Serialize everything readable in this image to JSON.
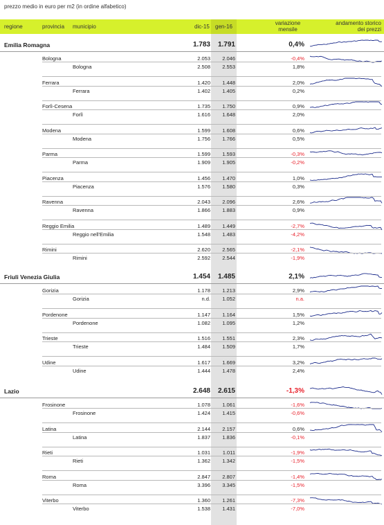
{
  "caption": "prezzo medio in euro per m2 (in ordine alfabetico)",
  "colors": {
    "header": "#d6f02c",
    "negative": "#e8202a",
    "spark": "#1a2a8a",
    "grayColumn": "#e2e2e2"
  },
  "header": {
    "regione": "regione",
    "provincia": "provincia",
    "municipio": "municipio",
    "dic": "dic-15",
    "gen": "gen-16",
    "variazione_1": "variazione",
    "variazione_2": "mensile",
    "andamento_1": "andamento storico",
    "andamento_2": "dei prezzi"
  },
  "regions": [
    {
      "name": "Emilia Romagna",
      "dic": "1.783",
      "gen": "1.791",
      "var": "0,4%",
      "neg": false,
      "provinces": [
        {
          "name": "Bologna",
          "dic": "2.053",
          "gen": "2.046",
          "var": "-0,4%",
          "neg": true,
          "city": {
            "name": "Bologna",
            "dic": "2.508",
            "gen": "2.553",
            "var": "1,8%",
            "neg": false
          }
        },
        {
          "name": "Ferrara",
          "dic": "1.420",
          "gen": "1.448",
          "var": "2,0%",
          "neg": false,
          "city": {
            "name": "Ferrara",
            "dic": "1.402",
            "gen": "1.405",
            "var": "0,2%",
            "neg": false
          }
        },
        {
          "name": "Forlì-Cesena",
          "dic": "1.735",
          "gen": "1.750",
          "var": "0,9%",
          "neg": false,
          "city": {
            "name": "Forlì",
            "dic": "1.616",
            "gen": "1.648",
            "var": "2,0%",
            "neg": false
          }
        },
        {
          "name": "Modena",
          "dic": "1.599",
          "gen": "1.608",
          "var": "0,6%",
          "neg": false,
          "city": {
            "name": "Modena",
            "dic": "1.756",
            "gen": "1.766",
            "var": "0,5%",
            "neg": false
          }
        },
        {
          "name": "Parma",
          "dic": "1.599",
          "gen": "1.593",
          "var": "-0,3%",
          "neg": true,
          "city": {
            "name": "Parma",
            "dic": "1.909",
            "gen": "1.905",
            "var": "-0,2%",
            "neg": true
          }
        },
        {
          "name": "Piacenza",
          "dic": "1.456",
          "gen": "1.470",
          "var": "1,0%",
          "neg": false,
          "city": {
            "name": "Piacenza",
            "dic": "1.576",
            "gen": "1.580",
            "var": "0,3%",
            "neg": false
          }
        },
        {
          "name": "Ravenna",
          "dic": "2.043",
          "gen": "2.096",
          "var": "2,6%",
          "neg": false,
          "city": {
            "name": "Ravenna",
            "dic": "1.866",
            "gen": "1.883",
            "var": "0,9%",
            "neg": false
          }
        },
        {
          "name": "Reggio Emilia",
          "dic": "1.489",
          "gen": "1.449",
          "var": "-2,7%",
          "neg": true,
          "city": {
            "name": "Reggio nell'Emilia",
            "dic": "1.548",
            "gen": "1.483",
            "var": "-4,2%",
            "neg": true
          }
        },
        {
          "name": "Rimini",
          "dic": "2.620",
          "gen": "2.565",
          "var": "-2,1%",
          "neg": true,
          "city": {
            "name": "Rimini",
            "dic": "2.592",
            "gen": "2.544",
            "var": "-1,9%",
            "neg": true
          }
        }
      ]
    },
    {
      "name": "Friuli Venezia Giulia",
      "dic": "1.454",
      "gen": "1.485",
      "var": "2,1%",
      "neg": false,
      "provinces": [
        {
          "name": "Gorizia",
          "dic": "1.178",
          "gen": "1.213",
          "var": "2,9%",
          "neg": false,
          "city": {
            "name": "Gorizia",
            "dic": "n.d.",
            "gen": "1.052",
            "var": "n.a.",
            "neg": true
          }
        },
        {
          "name": "Pordenone",
          "dic": "1.147",
          "gen": "1.164",
          "var": "1,5%",
          "neg": false,
          "city": {
            "name": "Pordenone",
            "dic": "1.082",
            "gen": "1.095",
            "var": "1,2%",
            "neg": false
          }
        },
        {
          "name": "Trieste",
          "dic": "1.516",
          "gen": "1.551",
          "var": "2,3%",
          "neg": false,
          "city": {
            "name": "Trieste",
            "dic": "1.484",
            "gen": "1.509",
            "var": "1,7%",
            "neg": false
          }
        },
        {
          "name": "Udine",
          "dic": "1.617",
          "gen": "1.669",
          "var": "3,2%",
          "neg": false,
          "city": {
            "name": "Udine",
            "dic": "1.444",
            "gen": "1.478",
            "var": "2,4%",
            "neg": false
          }
        }
      ]
    },
    {
      "name": "Lazio",
      "dic": "2.648",
      "gen": "2.615",
      "var": "-1,3%",
      "neg": true,
      "provinces": [
        {
          "name": "Frosinone",
          "dic": "1.078",
          "gen": "1.061",
          "var": "-1,6%",
          "neg": true,
          "city": {
            "name": "Frosinone",
            "dic": "1.424",
            "gen": "1.415",
            "var": "-0,6%",
            "neg": true
          }
        },
        {
          "name": "Latina",
          "dic": "2.144",
          "gen": "2.157",
          "var": "0,6%",
          "neg": false,
          "city": {
            "name": "Latina",
            "dic": "1.837",
            "gen": "1.836",
            "var": "-0,1%",
            "neg": true
          }
        },
        {
          "name": "Rieti",
          "dic": "1.031",
          "gen": "1.011",
          "var": "-1,9%",
          "neg": true,
          "city": {
            "name": "Rieti",
            "dic": "1.362",
            "gen": "1.342",
            "var": "-1,5%",
            "neg": true
          }
        },
        {
          "name": "Roma",
          "dic": "2.847",
          "gen": "2.807",
          "var": "-1,4%",
          "neg": true,
          "city": {
            "name": "Roma",
            "dic": "3.396",
            "gen": "3.345",
            "var": "-1,5%",
            "neg": true
          }
        },
        {
          "name": "Viterbo",
          "dic": "1.360",
          "gen": "1.261",
          "var": "-7,3%",
          "neg": true,
          "city": {
            "name": "Viterbo",
            "dic": "1.538",
            "gen": "1.431",
            "var": "-7,0%",
            "neg": true
          }
        }
      ]
    }
  ]
}
